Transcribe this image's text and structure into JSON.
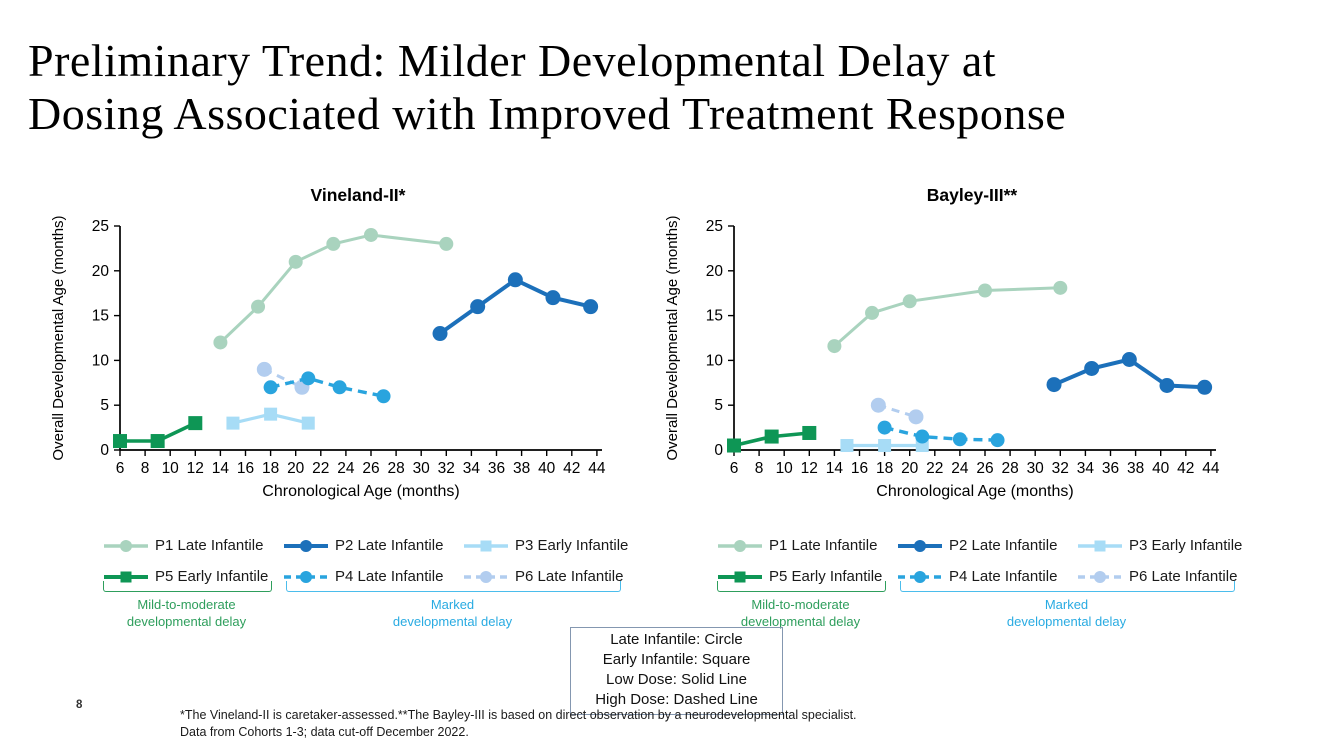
{
  "slide": {
    "title_line1": "Preliminary Trend: Milder Developmental Delay at",
    "title_line2": "Dosing Associated with Improved Treatment Response",
    "page_number": "8",
    "footnote_line1": "*The Vineland-II is caretaker-assessed.**The Bayley-III is based on direct observation by a neurodevelopmental specialist.",
    "footnote_line2": "Data from Cohorts 1-3; data cut-off December 2022."
  },
  "series_styles": {
    "P1": {
      "label": "P1 Late Infantile",
      "color": "#A9D3BE",
      "marker": "circle",
      "dash": false,
      "line_width": 3.0,
      "marker_size": 7.0
    },
    "P2": {
      "label": "P2 Late Infantile",
      "color": "#1C70BA",
      "marker": "circle",
      "dash": false,
      "line_width": 4.0,
      "marker_size": 7.5
    },
    "P3": {
      "label": "P3 Early Infantile",
      "color": "#A7DCF6",
      "marker": "square",
      "dash": false,
      "line_width": 3.2,
      "marker_size": 6.5
    },
    "P4": {
      "label": "P4 Late Infantile",
      "color": "#29A4DE",
      "marker": "circle",
      "dash": true,
      "line_width": 3.4,
      "marker_size": 7.0
    },
    "P5": {
      "label": "P5 Early Infantile",
      "color": "#0E9655",
      "marker": "square",
      "dash": false,
      "line_width": 3.6,
      "marker_size": 7.0
    },
    "P6": {
      "label": "P6 Late Infantile",
      "color": "#B2CDEF",
      "marker": "circle",
      "dash": true,
      "line_width": 3.0,
      "marker_size": 7.5
    }
  },
  "legend": {
    "rows": [
      [
        "P1",
        "P2",
        "P3"
      ],
      [
        "P5",
        "P4",
        "P6"
      ]
    ]
  },
  "groups": {
    "mild": {
      "line1": "Mild-to-moderate",
      "line2": "developmental delay",
      "color": "#2E9E5C",
      "bracket_color": "#2E9E5C"
    },
    "marked": {
      "line1": "Marked",
      "line2": "developmental delay",
      "color": "#29ABE2",
      "bracket_color": "#4BBDEC"
    }
  },
  "key_box": {
    "lines": [
      "Late Infantile: Circle",
      "Early Infantile: Square",
      "Low Dose: Solid Line",
      "High Dose: Dashed Line"
    ]
  },
  "chart_data": [
    {
      "id": "vineland",
      "type": "line",
      "title": "Vineland-II*",
      "xlabel": "Chronological Age (months)",
      "ylabel": "Overall Developmental Age (months)",
      "xlim": [
        6,
        44
      ],
      "ylim": [
        0,
        25
      ],
      "xticks": [
        6,
        8,
        10,
        12,
        14,
        16,
        18,
        20,
        22,
        24,
        26,
        28,
        30,
        32,
        34,
        36,
        38,
        40,
        42,
        44
      ],
      "yticks": [
        0,
        5,
        10,
        15,
        20,
        25
      ],
      "grid": false,
      "series": [
        {
          "id": "P1",
          "name": "P1 Late Infantile",
          "points": [
            [
              14,
              12
            ],
            [
              17,
              16
            ],
            [
              20,
              21
            ],
            [
              23,
              23
            ],
            [
              26,
              24
            ],
            [
              32,
              23
            ]
          ]
        },
        {
          "id": "P6",
          "name": "P6 Late Infantile",
          "points": [
            [
              17.5,
              9
            ],
            [
              20.5,
              7
            ]
          ]
        },
        {
          "id": "P3",
          "name": "P3 Early Infantile",
          "points": [
            [
              15,
              3
            ],
            [
              18,
              4
            ],
            [
              21,
              3
            ]
          ]
        },
        {
          "id": "P4",
          "name": "P4 Late Infantile",
          "points": [
            [
              18,
              7
            ],
            [
              21,
              8
            ],
            [
              23.5,
              7
            ],
            [
              27,
              6
            ]
          ]
        },
        {
          "id": "P5",
          "name": "P5 Early Infantile",
          "points": [
            [
              6,
              1
            ],
            [
              9,
              1
            ],
            [
              12,
              3
            ]
          ]
        },
        {
          "id": "P2",
          "name": "P2 Late Infantile",
          "points": [
            [
              31.5,
              13
            ],
            [
              34.5,
              16
            ],
            [
              37.5,
              19
            ],
            [
              40.5,
              17
            ],
            [
              43.5,
              16
            ]
          ]
        }
      ]
    },
    {
      "id": "bayley",
      "type": "line",
      "title": "Bayley-III**",
      "xlabel": "Chronological Age (months)",
      "ylabel": "Overall Developmental Age (months)",
      "xlim": [
        6,
        44
      ],
      "ylim": [
        0,
        25
      ],
      "xticks": [
        6,
        8,
        10,
        12,
        14,
        16,
        18,
        20,
        22,
        24,
        26,
        28,
        30,
        32,
        34,
        36,
        38,
        40,
        42,
        44
      ],
      "yticks": [
        0,
        5,
        10,
        15,
        20,
        25
      ],
      "grid": false,
      "series": [
        {
          "id": "P1",
          "name": "P1 Late Infantile",
          "points": [
            [
              14,
              11.6
            ],
            [
              17,
              15.3
            ],
            [
              20,
              16.6
            ],
            [
              26,
              17.8
            ],
            [
              32,
              18.1
            ]
          ]
        },
        {
          "id": "P6",
          "name": "P6 Late Infantile",
          "points": [
            [
              17.5,
              5
            ],
            [
              20.5,
              3.7
            ]
          ]
        },
        {
          "id": "P3",
          "name": "P3 Early Infantile",
          "points": [
            [
              15,
              0.5
            ],
            [
              18,
              0.5
            ],
            [
              21,
              0.5
            ]
          ]
        },
        {
          "id": "P4",
          "name": "P4 Late Infantile",
          "points": [
            [
              18,
              2.5
            ],
            [
              21,
              1.5
            ],
            [
              24,
              1.2
            ],
            [
              27,
              1.1
            ]
          ]
        },
        {
          "id": "P5",
          "name": "P5 Early Infantile",
          "points": [
            [
              6,
              0.5
            ],
            [
              9,
              1.5
            ],
            [
              12,
              1.9
            ]
          ]
        },
        {
          "id": "P2",
          "name": "P2 Late Infantile",
          "points": [
            [
              31.5,
              7.3
            ],
            [
              34.5,
              9.1
            ],
            [
              37.5,
              10.1
            ],
            [
              40.5,
              7.2
            ],
            [
              43.5,
              7
            ]
          ]
        }
      ]
    }
  ]
}
